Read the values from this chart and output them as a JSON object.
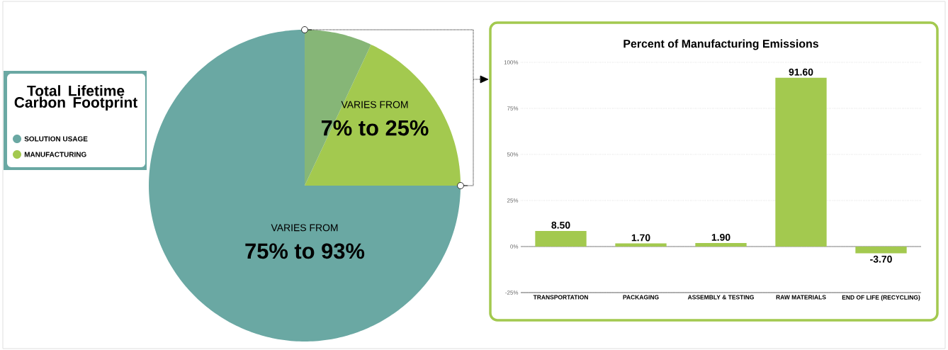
{
  "chart_data": [
    {
      "type": "pie",
      "title": "Total Lifetime Carbon Footprint",
      "categories": [
        "SOLUTION USAGE",
        "MANUFACTURING",
        null
      ],
      "values": [
        75,
        18,
        7
      ],
      "colors": [
        "#6aa8a3",
        "#a3c94f",
        "#86b677"
      ],
      "legend": "left",
      "annotations": [
        "VARIES FROM",
        "75% to 93%",
        "VARIES FROM",
        "7% to 25%"
      ]
    },
    {
      "type": "bar",
      "title": "Percent of Manufacturing Emissions",
      "categories": [
        "TRANSPORTATION",
        "PACKAGING",
        "ASSEMBLY & TESTING",
        "RAW MATERIALS",
        "END OF LIFE (RECYCLING)"
      ],
      "values": [
        8.5,
        1.7,
        1.9,
        91.6,
        -3.7
      ],
      "value_labels": [
        "8.50",
        "1.70",
        "1.90",
        "91.60",
        "-3.70"
      ],
      "color": "#a3c94f",
      "ylim": [
        -25,
        100
      ],
      "yticks": [
        {
          "value": -25,
          "label": "-25%"
        },
        {
          "value": 0,
          "label": "0%"
        },
        {
          "value": 25,
          "label": "25%"
        },
        {
          "value": 50,
          "label": "50%"
        },
        {
          "value": 75,
          "label": "75%"
        },
        {
          "value": 100,
          "label": "100%"
        }
      ],
      "grid": "y"
    }
  ]
}
